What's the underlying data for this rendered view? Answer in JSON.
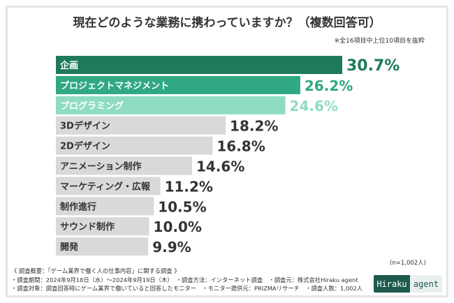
{
  "title": "現在どのような業務に携わっていますか？（複数回答可）",
  "note": "※全16項目中上位10項目を抜粋",
  "sample_size": "(n=1,002人)",
  "footer": {
    "line1": "《 調査概要：「ゲーム業界で働く人の仕事内容」に関する調査 》",
    "line2": "・調査期間：2024年9月18日（水）〜2024年9月19日（木）　・調査方法：インターネット調査　・調査元：株式会社Hiraku agent",
    "line3": "・調査対象：調査回答時にゲーム業界で働いていると回答したモニター　・モニター提供元：PRIZMAリサーチ　・調査人数：1,002人"
  },
  "logo": {
    "part1": "Hiraku",
    "part2": "agent"
  },
  "chart_data": {
    "type": "bar",
    "orientation": "horizontal",
    "categories": [
      "企画",
      "プロジェクトマネジメント",
      "プログラミング",
      "3Dデザイン",
      "2Dデザイン",
      "アニメーション制作",
      "マーケティング・広報",
      "制作進行",
      "サウンド制作",
      "開発"
    ],
    "values": [
      30.7,
      26.2,
      24.6,
      18.2,
      16.8,
      14.6,
      11.2,
      10.5,
      10.0,
      9.9
    ],
    "value_labels": [
      "30.7%",
      "26.2%",
      "24.6%",
      "18.2%",
      "16.8%",
      "14.6%",
      "11.2%",
      "10.5%",
      "10.0%",
      "9.9%"
    ],
    "bar_colors": [
      "#1e7a5a",
      "#30a884",
      "#8fdcc3",
      "#d9d9d9",
      "#d9d9d9",
      "#d9d9d9",
      "#d9d9d9",
      "#d9d9d9",
      "#d9d9d9",
      "#d9d9d9"
    ],
    "text_colors": [
      "#ffffff",
      "#ffffff",
      "#ffffff",
      "#333333",
      "#333333",
      "#333333",
      "#333333",
      "#333333",
      "#333333",
      "#333333"
    ],
    "value_colors": [
      "#1e7a5a",
      "#30a884",
      "#8fdcc3",
      "#333333",
      "#333333",
      "#333333",
      "#333333",
      "#333333",
      "#333333",
      "#333333"
    ],
    "xlim": [
      0,
      30.7
    ]
  }
}
